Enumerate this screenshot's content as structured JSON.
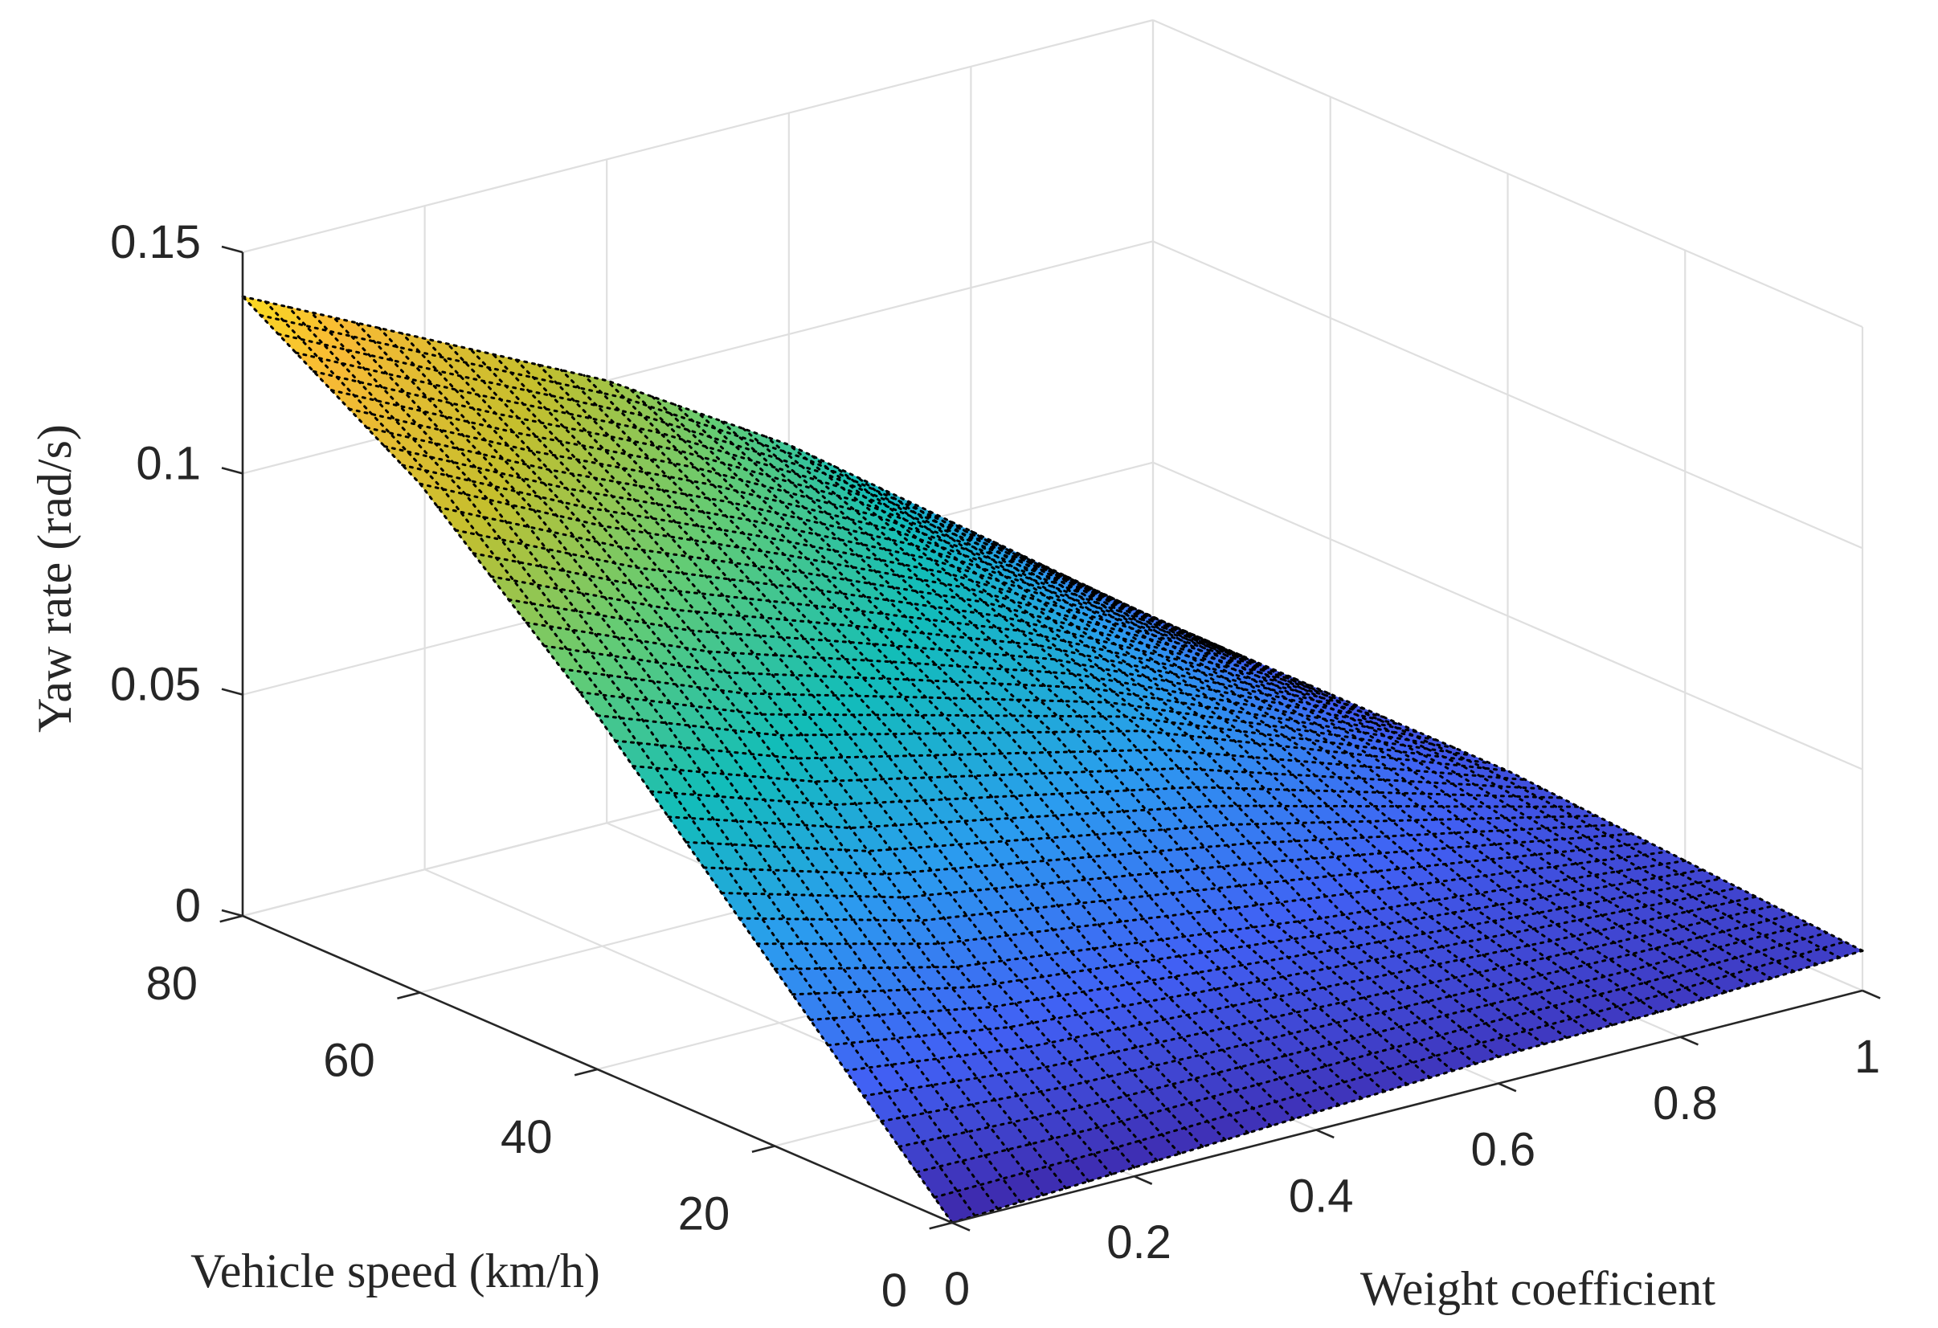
{
  "chart_data": {
    "type": "surface",
    "title": "",
    "xlabel": "Weight coefficient",
    "ylabel": "Vehicle speed (km/h)",
    "zlabel": "Yaw rate (rad/s)",
    "xlim": [
      0,
      1
    ],
    "ylim": [
      0,
      80
    ],
    "zlim": [
      0,
      0.15
    ],
    "x_ticks": [
      0,
      0.2,
      0.4,
      0.6,
      0.8,
      1
    ],
    "x_tick_labels": [
      "0",
      "0.2",
      "0.4",
      "0.6",
      "0.8",
      "1"
    ],
    "y_ticks": [
      0,
      20,
      40,
      60,
      80
    ],
    "y_tick_labels": [
      "0",
      "20",
      "40",
      "60",
      "80"
    ],
    "z_ticks": [
      0,
      0.05,
      0.1,
      0.15
    ],
    "z_tick_labels": [
      "0",
      "0.05",
      "0.1",
      "0.15"
    ],
    "grid": true,
    "colormap": [
      "#3e26a8",
      "#4160f4",
      "#2b9cef",
      "#12bdb9",
      "#64cc74",
      "#c5bf2d",
      "#f9ba35",
      "#f9fb0e"
    ],
    "grid_x": [
      0,
      0.2,
      0.4,
      0.6,
      0.8,
      1
    ],
    "grid_y": [
      0,
      20,
      40,
      60,
      80
    ],
    "surface_z": [
      [
        0.0,
        0.002,
        0.004,
        0.006,
        0.007,
        0.009
      ],
      [
        0.04,
        0.03,
        0.025,
        0.02,
        0.016,
        0.012
      ],
      [
        0.08,
        0.065,
        0.055,
        0.045,
        0.03,
        0.015
      ],
      [
        0.115,
        0.095,
        0.078,
        0.06,
        0.038,
        0.015
      ],
      [
        0.14,
        0.12,
        0.1,
        0.075,
        0.045,
        0.015
      ]
    ],
    "line_style": "dotted",
    "line_color": "#000000"
  }
}
